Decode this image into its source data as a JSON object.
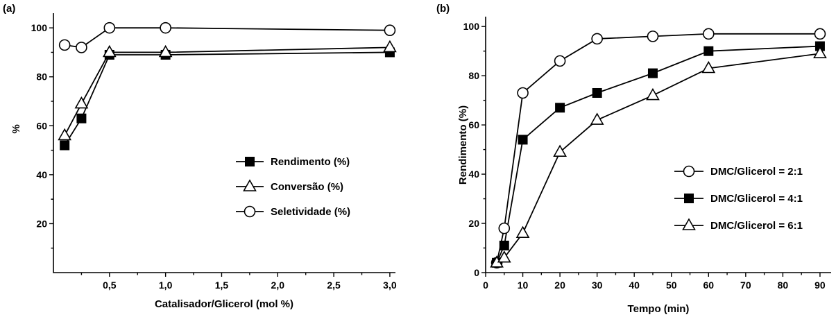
{
  "chart_data": [
    {
      "type": "line",
      "panel_label": "(a)",
      "xlabel": "Catalisador/Glicerol (mol %)",
      "ylabel": "%",
      "xlim": [
        0.0,
        3.05
      ],
      "ylim": [
        0,
        106
      ],
      "xticks": [
        0.5,
        1.0,
        1.5,
        2.0,
        2.5,
        3.0
      ],
      "xtick_labels": [
        "0,5",
        "1,0",
        "1,5",
        "2,0",
        "2,5",
        "3,0"
      ],
      "yticks": [
        20,
        40,
        60,
        80,
        100
      ],
      "ytick_labels": [
        "20",
        "40",
        "60",
        "80",
        "100"
      ],
      "legend_position": "center-right",
      "series": [
        {
          "name": "Rendimento (%)",
          "marker": "square-filled",
          "x": [
            0.1,
            0.25,
            0.5,
            1.0,
            3.0
          ],
          "y": [
            52,
            63,
            89,
            89,
            90
          ]
        },
        {
          "name": "Conversão (%)",
          "marker": "triangle-open",
          "x": [
            0.1,
            0.25,
            0.5,
            1.0,
            3.0
          ],
          "y": [
            56,
            69,
            90,
            90,
            92
          ]
        },
        {
          "name": "Seletividade (%)",
          "marker": "circle-open",
          "x": [
            0.1,
            0.25,
            0.5,
            1.0,
            3.0
          ],
          "y": [
            93,
            92,
            100,
            100,
            99
          ]
        }
      ]
    },
    {
      "type": "line",
      "panel_label": "(b)",
      "xlabel": "Tempo (min)",
      "ylabel": "Rendimento (%)",
      "xlim": [
        0,
        93
      ],
      "ylim": [
        0,
        104
      ],
      "xticks": [
        0,
        10,
        20,
        30,
        40,
        50,
        60,
        70,
        80,
        90
      ],
      "xtick_labels": [
        "0",
        "10",
        "20",
        "30",
        "40",
        "50",
        "60",
        "70",
        "80",
        "90"
      ],
      "yticks": [
        0,
        20,
        40,
        60,
        80,
        100
      ],
      "ytick_labels": [
        "0",
        "20",
        "40",
        "60",
        "80",
        "100"
      ],
      "legend_position": "center-right",
      "series": [
        {
          "name": "DMC/Glicerol = 2:1",
          "marker": "circle-open",
          "x": [
            3,
            5,
            10,
            20,
            30,
            45,
            60,
            90
          ],
          "y": [
            4,
            18,
            73,
            86,
            95,
            96,
            97,
            97
          ]
        },
        {
          "name": "DMC/Glicerol = 4:1",
          "marker": "square-filled",
          "x": [
            3,
            5,
            10,
            20,
            30,
            45,
            60,
            90
          ],
          "y": [
            4,
            11,
            54,
            67,
            73,
            81,
            90,
            92
          ]
        },
        {
          "name": "DMC/Glicerol = 6:1",
          "marker": "triangle-open",
          "x": [
            3,
            5,
            10,
            20,
            30,
            45,
            60,
            90
          ],
          "y": [
            4,
            6,
            16,
            49,
            62,
            72,
            83,
            89
          ]
        }
      ]
    }
  ]
}
